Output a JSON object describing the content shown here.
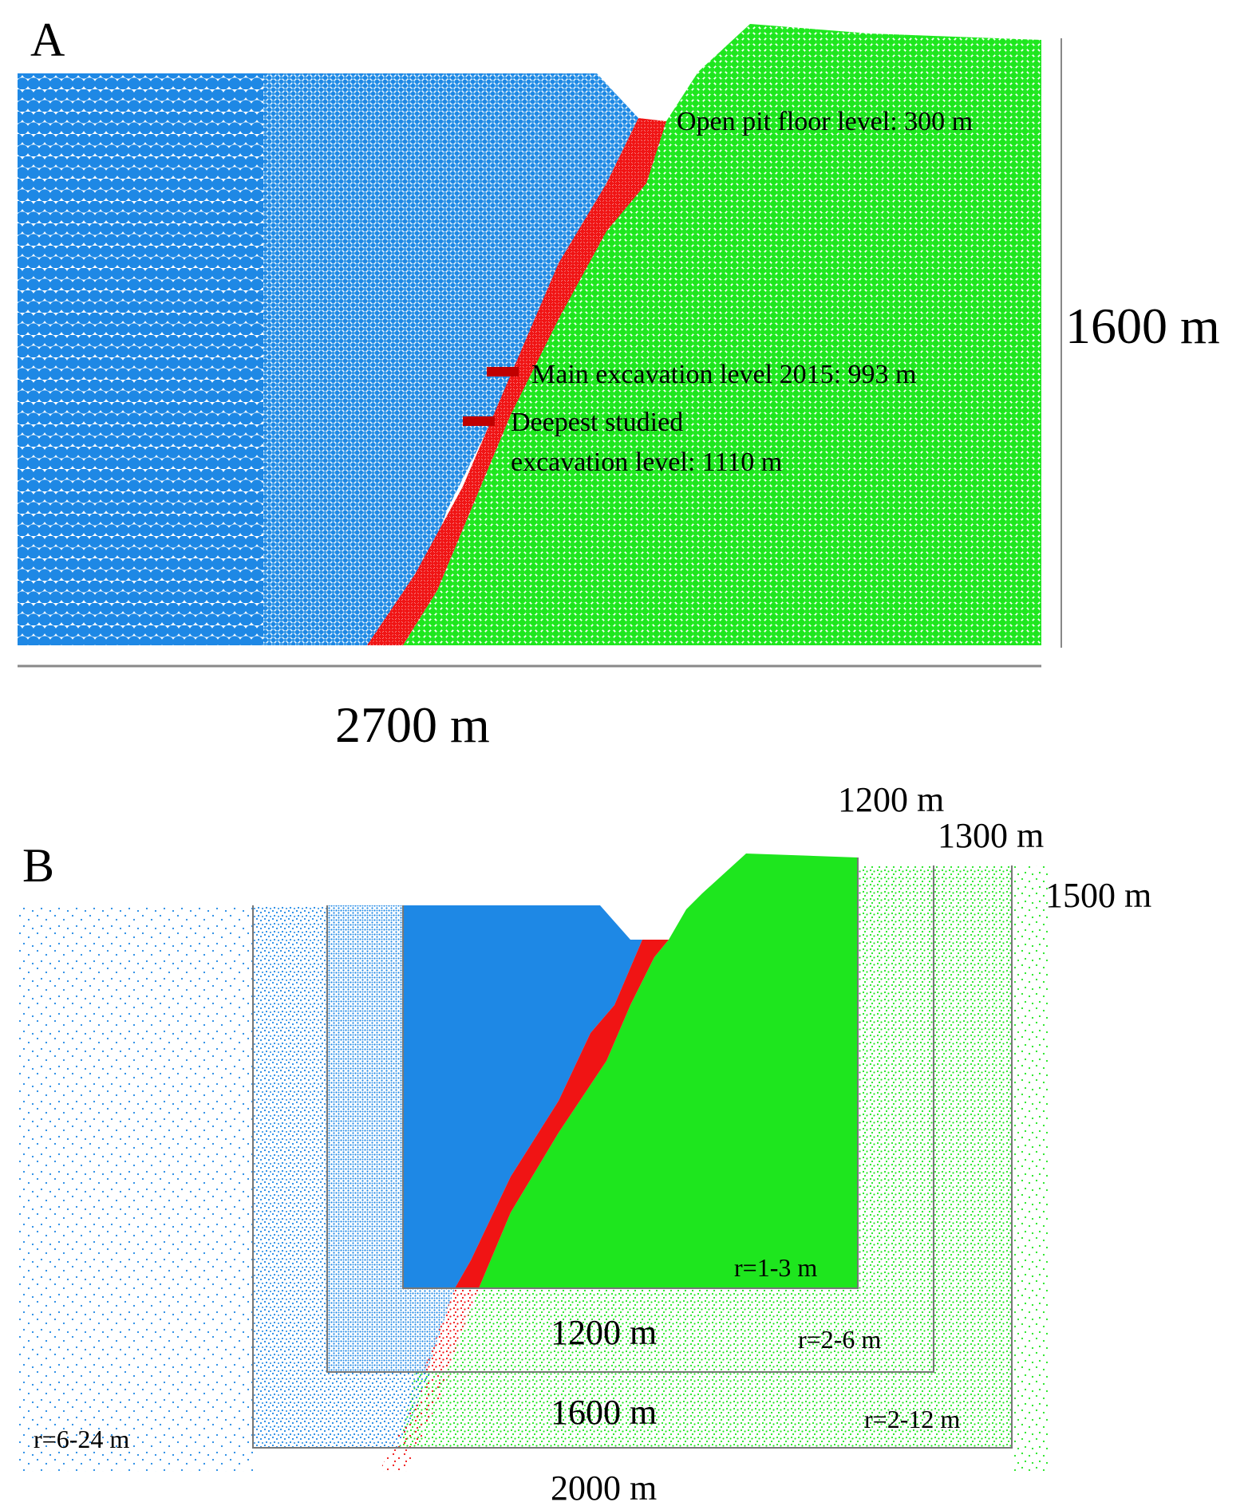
{
  "panel_a": {
    "label": "A",
    "annotations": {
      "pit_floor": "Open pit floor level: 300 m",
      "main_level": "Main excavation level 2015: 993 m",
      "deepest_line1": "Deepest studied",
      "deepest_line2": "excavation level: 1110 m"
    },
    "height_label": "1600 m",
    "width_label": "2700 m"
  },
  "panel_b": {
    "label": "B",
    "heights": {
      "inner": "1200 m",
      "middle": "1300 m",
      "outer": "1500 m"
    },
    "widths": {
      "inner": "1200 m",
      "middle": "1600 m",
      "outer": "2000 m"
    },
    "radii": {
      "inner": "r=1-3 m",
      "middle": "r=2-6 m",
      "outer": "r=2-12 m",
      "far": "r=6-24 m"
    }
  },
  "colors": {
    "blue": "#1e88e5",
    "light_blue": "#3a9be8",
    "green": "#1ee61e",
    "red": "#f01414",
    "frame": "#777777"
  }
}
